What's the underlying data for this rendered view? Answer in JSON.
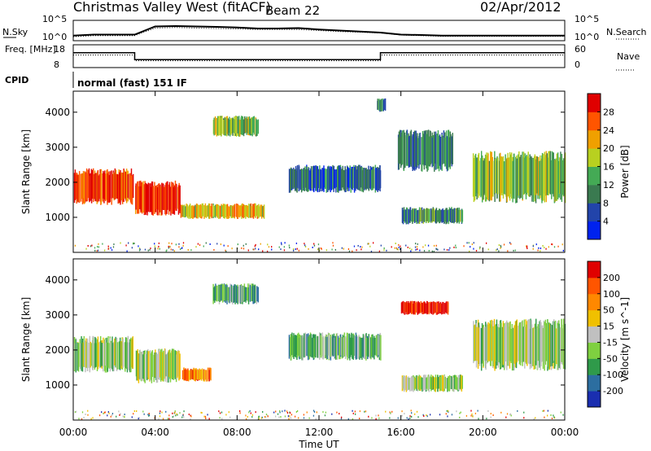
{
  "header": {
    "title": "Christmas Valley West (fitACF)",
    "beam": "Beam 22",
    "date": "02/Apr/2012"
  },
  "chart_data": [
    {
      "type": "line",
      "name": "noise-panel",
      "left_label": "N.Sky",
      "right_label": "N.Search",
      "left_ticks": [
        "10^5",
        "10^0"
      ],
      "right_ticks": [
        "10^5",
        "10^0"
      ],
      "series": [
        {
          "name": "N.Sky",
          "style": "solid",
          "x": [
            0,
            1,
            2,
            3,
            4,
            5,
            6,
            7,
            8,
            9,
            10,
            11,
            12,
            13,
            14,
            15,
            16,
            17,
            18,
            19,
            20,
            21,
            22,
            23,
            24
          ],
          "values": [
            0.25,
            0.3,
            0.3,
            0.3,
            0.7,
            0.72,
            0.7,
            0.68,
            0.65,
            0.6,
            0.6,
            0.62,
            0.55,
            0.5,
            0.45,
            0.4,
            0.3,
            0.28,
            0.25,
            0.25,
            0.25,
            0.25,
            0.25,
            0.25,
            0.25
          ]
        },
        {
          "name": "N.Search",
          "style": "dotted",
          "x": [
            0,
            1,
            2,
            3,
            4,
            5,
            6,
            7,
            8,
            9,
            10,
            11,
            12,
            13,
            14,
            15,
            16,
            17,
            18,
            19,
            20,
            21,
            22,
            23,
            24
          ],
          "values": [
            0.2,
            0.25,
            0.25,
            0.25,
            0.62,
            0.65,
            0.62,
            0.6,
            0.58,
            0.55,
            0.55,
            0.55,
            0.5,
            0.45,
            0.42,
            0.38,
            0.28,
            0.25,
            0.22,
            0.22,
            0.22,
            0.22,
            0.22,
            0.22,
            0.22
          ]
        }
      ]
    },
    {
      "type": "line",
      "name": "frequency-panel",
      "left_label": "Freq. [MHz]",
      "right_label": "Nave",
      "left_ticks": [
        "18",
        "8"
      ],
      "right_ticks": [
        "60",
        "0"
      ],
      "ylim": [
        8,
        18
      ],
      "series": [
        {
          "name": "Freq.",
          "style": "solid",
          "x": [
            0,
            3,
            3,
            15,
            15,
            24
          ],
          "values": [
            14.5,
            14.5,
            11.5,
            11.5,
            14.5,
            14.5
          ]
        },
        {
          "name": "Nave",
          "style": "dotted",
          "x": [
            0,
            3,
            3,
            15,
            15,
            24
          ],
          "values": [
            13.5,
            13.5,
            11,
            11,
            13.5,
            13.5
          ]
        }
      ]
    },
    {
      "type": "heatmap",
      "name": "cpid-panel",
      "label": "CPID",
      "program": "normal (fast) 151 IF"
    },
    {
      "type": "heatmap",
      "name": "power",
      "ylabel": "Slant Range [km]",
      "ylim": [
        0,
        4600
      ],
      "yticks": [
        "1000",
        "2000",
        "3000",
        "4000"
      ],
      "colorbar": {
        "label": "Power [dB]",
        "ticks": [
          "4",
          "8",
          "12",
          "16",
          "20",
          "24",
          "28"
        ],
        "colors": [
          "#0022ee",
          "#2244aa",
          "#3a7a50",
          "#44aa55",
          "#b8d020",
          "#f0a000",
          "#ff5500",
          "#e00000"
        ]
      },
      "regions": [
        {
          "t": [
            0,
            2.9
          ],
          "r": [
            1350,
            2400
          ],
          "level": 0.85
        },
        {
          "t": [
            3.0,
            5.2
          ],
          "r": [
            1050,
            2050
          ],
          "level": 0.9
        },
        {
          "t": [
            5.2,
            9.3
          ],
          "r": [
            950,
            1400
          ],
          "level": 0.65
        },
        {
          "t": [
            6.8,
            9.0
          ],
          "r": [
            3300,
            3900
          ],
          "level": 0.5
        },
        {
          "t": [
            10.5,
            15.0
          ],
          "r": [
            1700,
            2500
          ],
          "level": 0.25
        },
        {
          "t": [
            15.8,
            18.5
          ],
          "r": [
            2300,
            3500
          ],
          "level": 0.3
        },
        {
          "t": [
            16.0,
            19.0
          ],
          "r": [
            800,
            1300
          ],
          "level": 0.35
        },
        {
          "t": [
            19.5,
            24.0
          ],
          "r": [
            1400,
            2900
          ],
          "level": 0.5
        },
        {
          "t": [
            14.8,
            15.2
          ],
          "r": [
            4000,
            4400
          ],
          "level": 0.3
        }
      ]
    },
    {
      "type": "heatmap",
      "name": "velocity",
      "ylabel": "Slant Range [km]",
      "ylim": [
        0,
        4600
      ],
      "yticks": [
        "1000",
        "2000",
        "3000",
        "4000"
      ],
      "colorbar": {
        "label": "Velocity [m s^-1]",
        "ticks": [
          "200",
          "100",
          "50",
          "15",
          "-15",
          "-50",
          "-100",
          "-200"
        ],
        "colors": [
          "#1a2eb0",
          "#2c6ea0",
          "#2f9a4a",
          "#7fd040",
          "#c0c0c0",
          "#f0c000",
          "#ff8800",
          "#ff5500",
          "#e00000"
        ]
      },
      "regions": [
        {
          "t": [
            0,
            2.9
          ],
          "r": [
            1350,
            2400
          ],
          "level": 0.45
        },
        {
          "t": [
            3.0,
            5.2
          ],
          "r": [
            1050,
            2050
          ],
          "level": 0.45
        },
        {
          "t": [
            5.3,
            6.7
          ],
          "r": [
            1100,
            1500
          ],
          "level": 0.75
        },
        {
          "t": [
            6.8,
            9.0
          ],
          "r": [
            3300,
            3900
          ],
          "level": 0.3
        },
        {
          "t": [
            10.5,
            15.0
          ],
          "r": [
            1700,
            2500
          ],
          "level": 0.35
        },
        {
          "t": [
            16.0,
            18.3
          ],
          "r": [
            3000,
            3400
          ],
          "level": 0.95
        },
        {
          "t": [
            16.0,
            19.0
          ],
          "r": [
            800,
            1300
          ],
          "level": 0.45
        },
        {
          "t": [
            19.5,
            24.0
          ],
          "r": [
            1400,
            2900
          ],
          "level": 0.45
        }
      ]
    }
  ],
  "x_axis": {
    "label": "Time UT",
    "ticks": [
      "00:00",
      "04:00",
      "08:00",
      "12:00",
      "16:00",
      "20:00",
      "00:00"
    ]
  }
}
